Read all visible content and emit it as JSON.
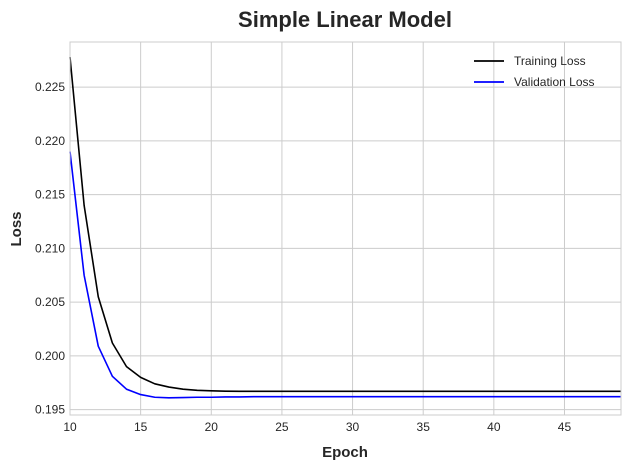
{
  "chart_data": {
    "type": "line",
    "title": "Simple Linear Model",
    "xlabel": "Epoch",
    "ylabel": "Loss",
    "xlim": [
      10,
      49
    ],
    "ylim": [
      0.1945,
      0.2292
    ],
    "grid": true,
    "legend_position": "top-right",
    "x_ticks": [
      10,
      15,
      20,
      25,
      30,
      35,
      40,
      45
    ],
    "y_ticks": [
      0.195,
      0.2,
      0.205,
      0.21,
      0.215,
      0.22,
      0.225
    ],
    "x_tick_labels": [
      "10",
      "15",
      "20",
      "25",
      "30",
      "35",
      "40",
      "45"
    ],
    "y_tick_labels": [
      "0.195",
      "0.200",
      "0.205",
      "0.210",
      "0.215",
      "0.220",
      "0.225"
    ],
    "x": [
      10,
      11,
      12,
      13,
      14,
      15,
      16,
      17,
      18,
      19,
      20,
      21,
      22,
      23,
      24,
      25,
      26,
      27,
      28,
      29,
      30,
      31,
      32,
      33,
      34,
      35,
      36,
      37,
      38,
      39,
      40,
      41,
      42,
      43,
      44,
      45,
      46,
      47,
      48,
      49
    ],
    "series": [
      {
        "name": "Training Loss",
        "color": "#000000",
        "values": [
          0.2278,
          0.214,
          0.2055,
          0.2012,
          0.199,
          0.198,
          0.1974,
          0.1971,
          0.1969,
          0.1968,
          0.19675,
          0.19672,
          0.1967,
          0.1967,
          0.1967,
          0.1967,
          0.1967,
          0.1967,
          0.1967,
          0.1967,
          0.1967,
          0.1967,
          0.1967,
          0.1967,
          0.1967,
          0.1967,
          0.1967,
          0.1967,
          0.1967,
          0.1967,
          0.1967,
          0.1967,
          0.1967,
          0.1967,
          0.1967,
          0.1967,
          0.1967,
          0.1967,
          0.1967,
          0.1967
        ]
      },
      {
        "name": "Validation Loss",
        "color": "#0000ff",
        "values": [
          0.219,
          0.2075,
          0.2009,
          0.1981,
          0.1969,
          0.1964,
          0.19615,
          0.1961,
          0.19612,
          0.19615,
          0.19615,
          0.19618,
          0.19618,
          0.1962,
          0.1962,
          0.1962,
          0.1962,
          0.1962,
          0.1962,
          0.1962,
          0.1962,
          0.1962,
          0.1962,
          0.1962,
          0.1962,
          0.1962,
          0.1962,
          0.1962,
          0.1962,
          0.1962,
          0.1962,
          0.1962,
          0.1962,
          0.1962,
          0.1962,
          0.1962,
          0.1962,
          0.1962,
          0.1962,
          0.1962
        ]
      }
    ]
  }
}
